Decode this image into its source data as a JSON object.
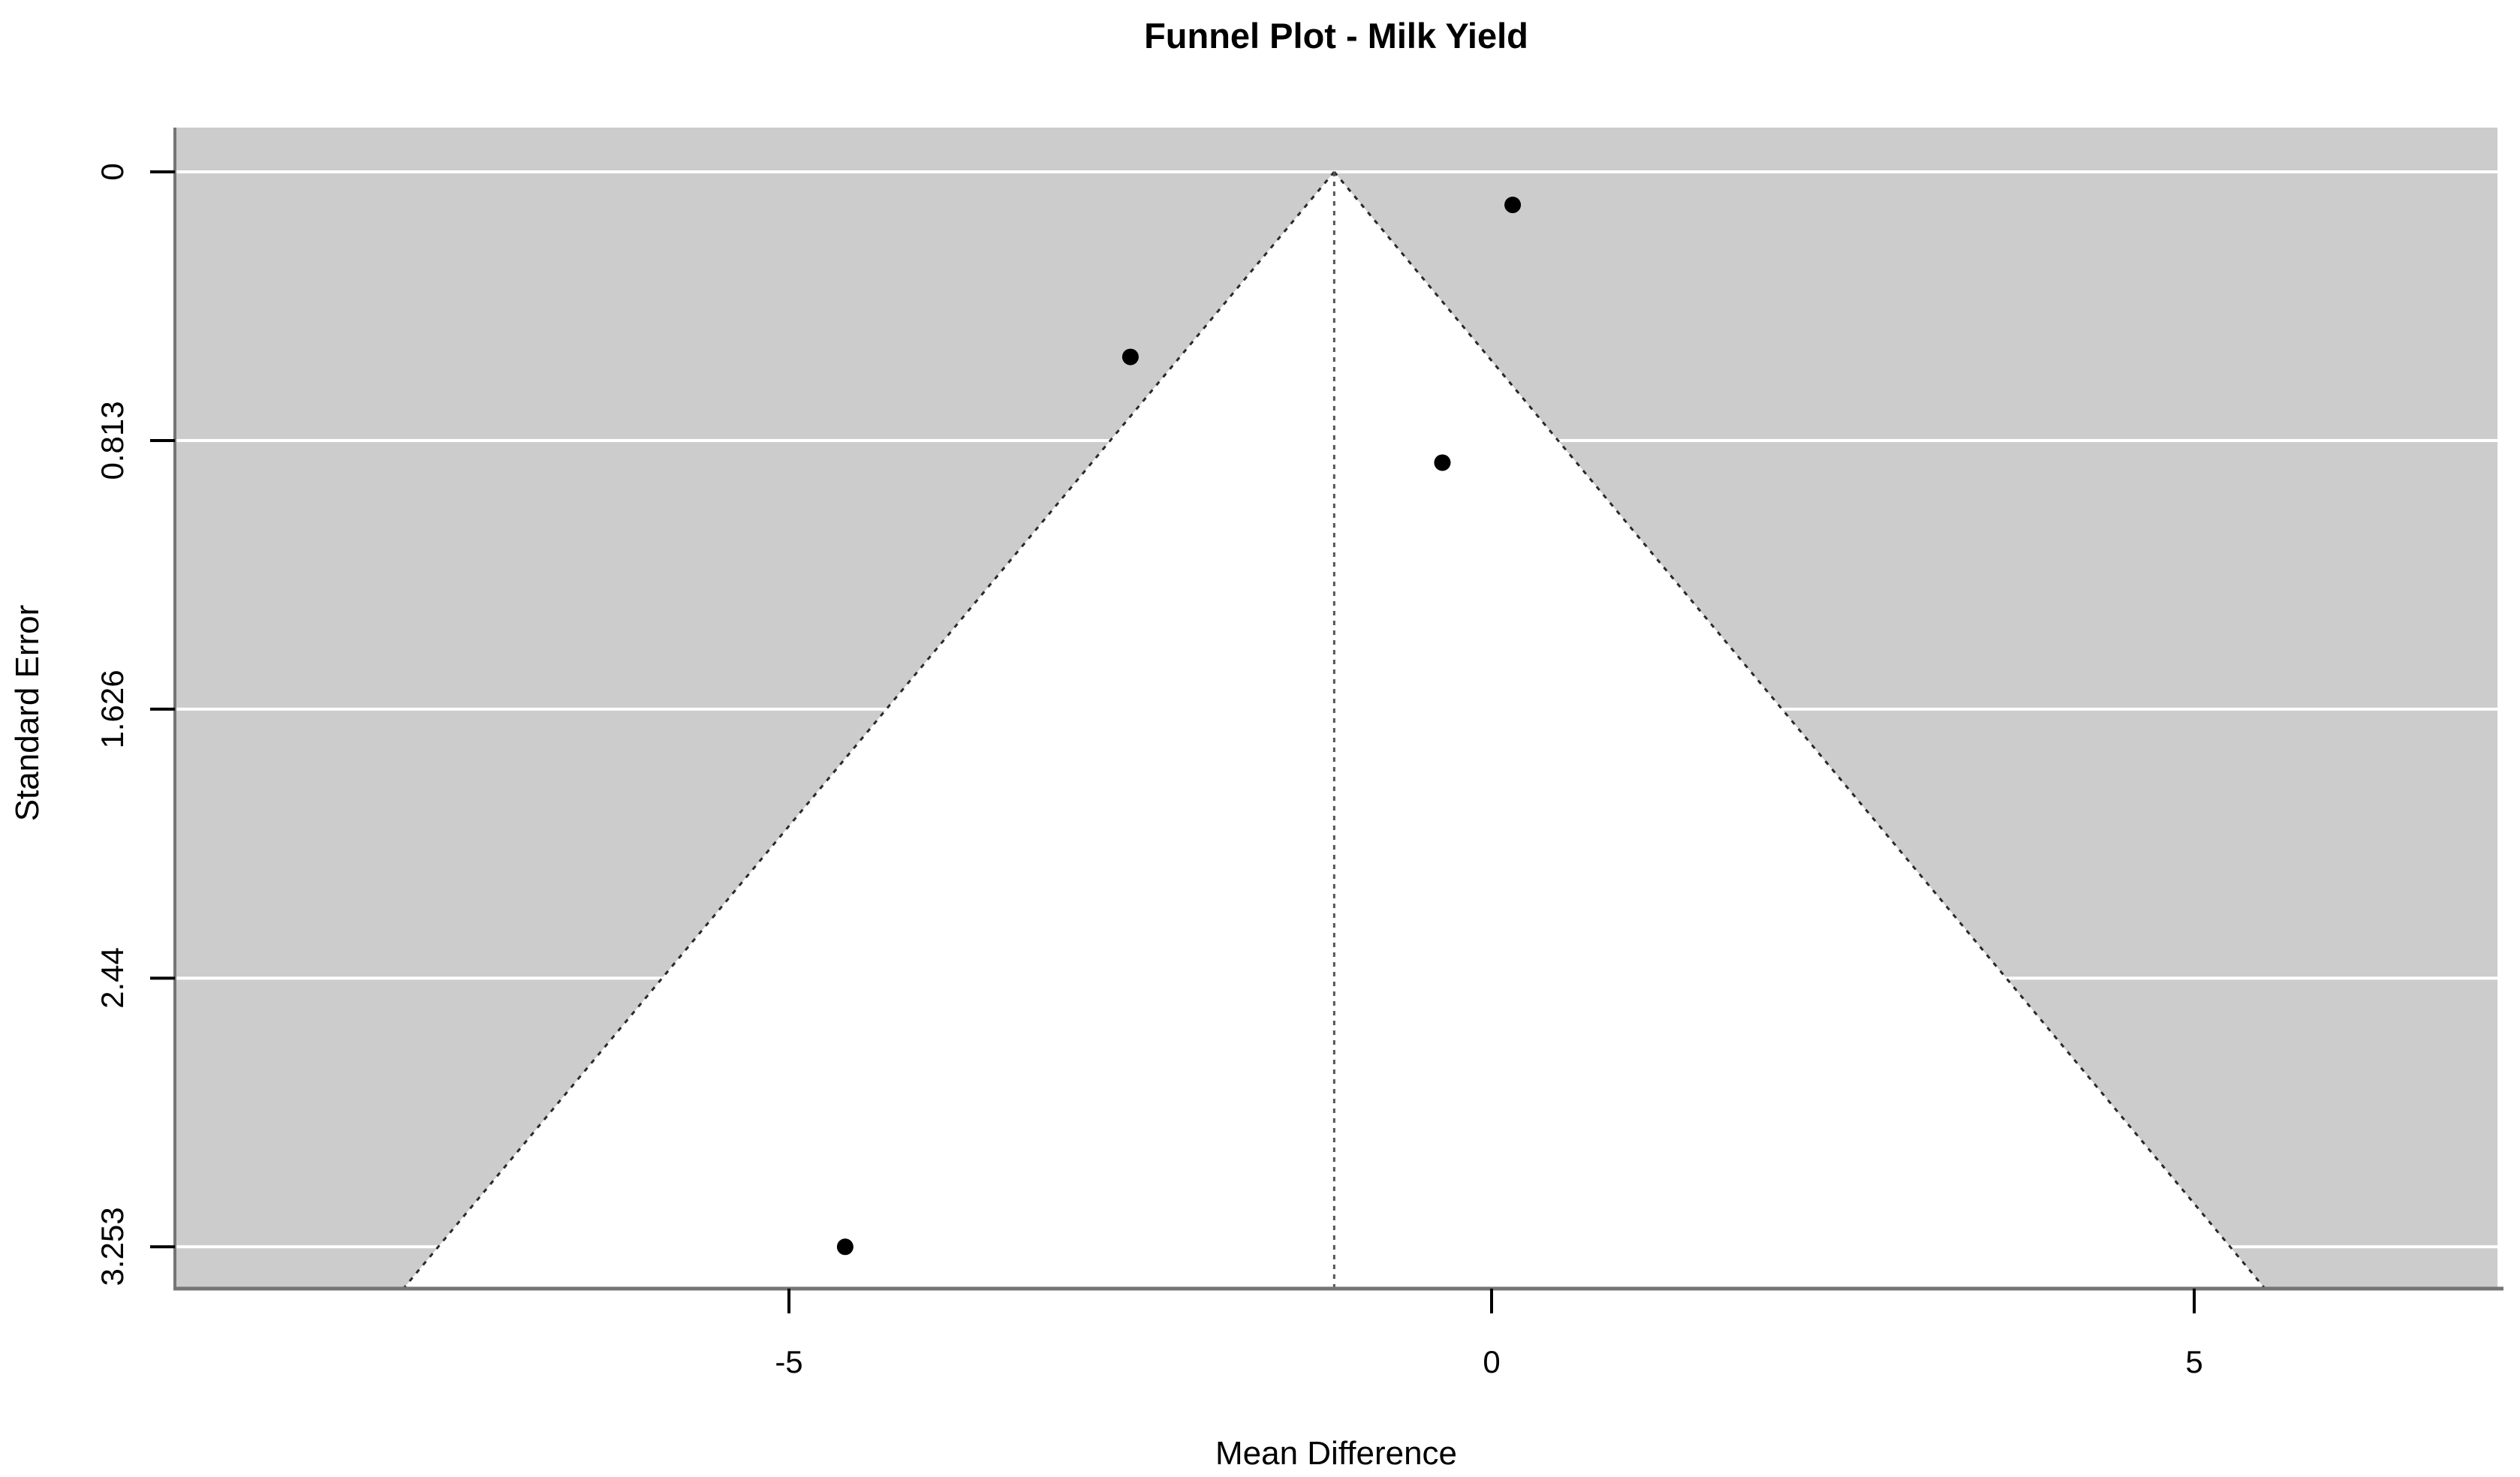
{
  "page": {
    "background_color": "#ffffff"
  },
  "chart_data": {
    "type": "scatter",
    "subtype": "funnel-plot",
    "title": "Funnel Plot - Milk Yield",
    "xlabel": "Mean Difference",
    "ylabel": "Standard Error",
    "x_ticks": [
      {
        "label": "-5",
        "value": -5
      },
      {
        "label": "0",
        "value": 0
      },
      {
        "label": "5",
        "value": 5
      }
    ],
    "y_ticks": [
      {
        "label": "0",
        "value": 0
      },
      {
        "label": "0.813",
        "value": 0.813
      },
      {
        "label": "1.626",
        "value": 1.626
      },
      {
        "label": "2.44",
        "value": 2.44
      },
      {
        "label": "3.253",
        "value": 3.253
      }
    ],
    "ylim": [
      0,
      3.253
    ],
    "y_axis_inverted": true,
    "points": [
      {
        "x": 0.15,
        "se": 0.1
      },
      {
        "x": -2.57,
        "se": 0.56
      },
      {
        "x": -0.35,
        "se": 0.88
      },
      {
        "x": -4.6,
        "se": 3.253
      }
    ],
    "center_estimate": -1.12,
    "ci_multiplier": 1.96,
    "legend": "none",
    "grid": "horizontal-white-lines",
    "colors": {
      "plot_background": "#cccccc",
      "funnel_region": "#ffffff",
      "gridline": "#ffffff",
      "axis_line": "#757575",
      "tick_mark": "#000000",
      "point": "#000000",
      "funnel_border": "#2a2a2a",
      "center_line": "#555555",
      "text": "#000000"
    }
  }
}
